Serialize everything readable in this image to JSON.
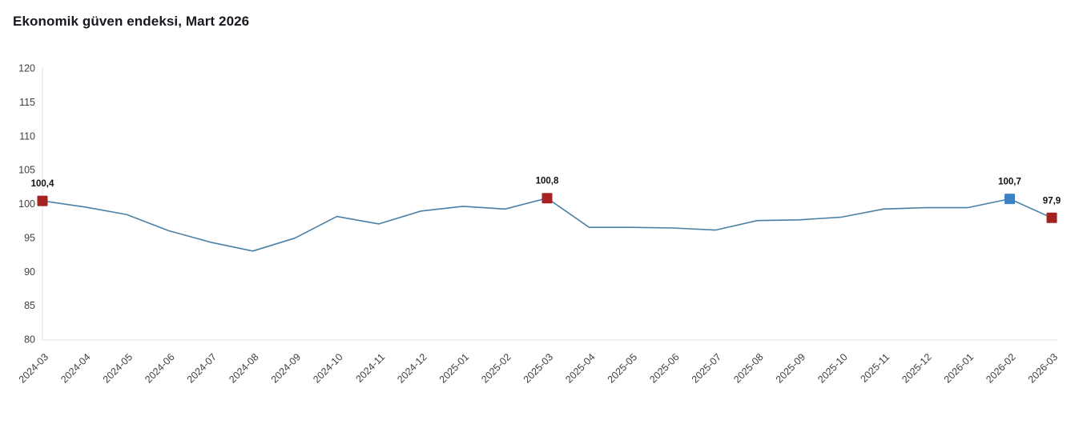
{
  "title": "Ekonomik güven endeksi, Mart 2026",
  "chart_data": {
    "type": "line",
    "title": "Ekonomik güven endeksi, Mart 2026",
    "xlabel": "",
    "ylabel": "",
    "ylim": [
      80,
      120
    ],
    "ytick_step": 5,
    "grid": false,
    "legend": false,
    "x": [
      "2024-03",
      "2024-04",
      "2024-05",
      "2024-06",
      "2024-07",
      "2024-08",
      "2024-09",
      "2024-10",
      "2024-11",
      "2024-12",
      "2025-01",
      "2025-02",
      "2025-03",
      "2025-04",
      "2025-05",
      "2025-06",
      "2025-07",
      "2025-08",
      "2025-09",
      "2025-10",
      "2025-11",
      "2025-12",
      "2026-01",
      "2026-02",
      "2026-03"
    ],
    "series": [
      {
        "name": "Ekonomik güven endeksi",
        "values": [
          100.4,
          99.5,
          98.4,
          96.0,
          94.3,
          93.0,
          94.9,
          98.1,
          97.0,
          98.9,
          99.6,
          99.2,
          100.8,
          96.5,
          96.5,
          96.4,
          96.1,
          97.5,
          97.6,
          98.0,
          99.2,
          99.4,
          99.4,
          100.7,
          97.9
        ]
      }
    ],
    "annotations": [
      {
        "x": "2024-03",
        "value": 100.4,
        "label": "100,4",
        "marker_color": "#a42322"
      },
      {
        "x": "2025-03",
        "value": 100.8,
        "label": "100,8",
        "marker_color": "#a42322"
      },
      {
        "x": "2026-02",
        "value": 100.7,
        "label": "100,7",
        "marker_color": "#3c82c4"
      },
      {
        "x": "2026-03",
        "value": 97.9,
        "label": "97,9",
        "marker_color": "#a42322"
      }
    ]
  },
  "colors": {
    "line": "#4a80a6",
    "marker_red": "#a42322",
    "marker_blue": "#3c82c4",
    "axis": "#e2e2e2",
    "tick_text": "#3f3f3f",
    "annotation_text": "#111111",
    "background": "#ffffff"
  }
}
